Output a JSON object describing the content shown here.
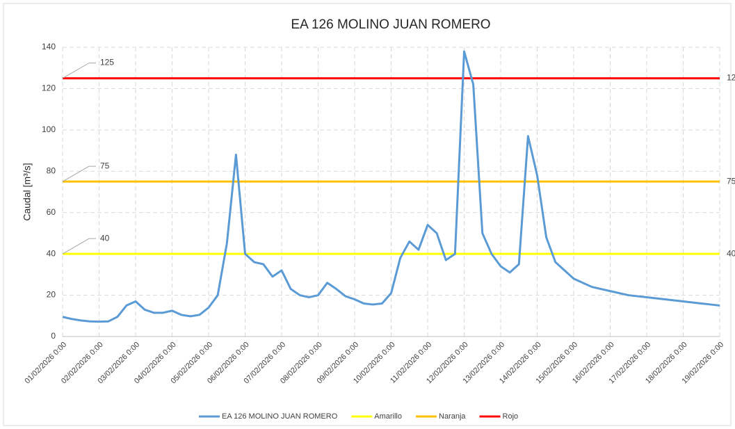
{
  "chart_data": {
    "type": "line",
    "title": "EA 126 MOLINO JUAN ROMERO",
    "y_label": "Caudal [m³/s]",
    "xlim": [
      "01/02/2026 0:00",
      "19/02/2026 0:00"
    ],
    "xticks": [
      "01/02/2026 0:00",
      "02/02/2026 0:00",
      "03/02/2026 0:00",
      "04/02/2026 0:00",
      "05/02/2026 0:00",
      "06/02/2026 0:00",
      "07/02/2026 0:00",
      "08/02/2026 0:00",
      "09/02/2026 0:00",
      "10/02/2026 0:00",
      "11/02/2026 0:00",
      "12/02/2026 0:00",
      "13/02/2026 0:00",
      "14/02/2026 0:00",
      "15/02/2026 0:00",
      "16/02/2026 0:00",
      "17/02/2026 0:00",
      "18/02/2026 0:00",
      "19/02/2026 0:00"
    ],
    "ylim": [
      0,
      140
    ],
    "yticks": [
      0,
      20,
      40,
      60,
      80,
      100,
      120,
      140
    ],
    "grid": true,
    "x": [
      "01/02/2026 0:00",
      "01/02/2026 6:00",
      "01/02/2026 12:00",
      "01/02/2026 18:00",
      "02/02/2026 0:00",
      "02/02/2026 6:00",
      "02/02/2026 12:00",
      "02/02/2026 18:00",
      "03/02/2026 0:00",
      "03/02/2026 6:00",
      "03/02/2026 12:00",
      "03/02/2026 18:00",
      "04/02/2026 0:00",
      "04/02/2026 6:00",
      "04/02/2026 12:00",
      "04/02/2026 18:00",
      "05/02/2026 0:00",
      "05/02/2026 6:00",
      "05/02/2026 12:00",
      "05/02/2026 18:00",
      "06/02/2026 0:00",
      "06/02/2026 6:00",
      "06/02/2026 12:00",
      "06/02/2026 18:00",
      "07/02/2026 0:00",
      "07/02/2026 6:00",
      "07/02/2026 12:00",
      "07/02/2026 18:00",
      "08/02/2026 0:00",
      "08/02/2026 6:00",
      "08/02/2026 12:00",
      "08/02/2026 18:00",
      "09/02/2026 0:00",
      "09/02/2026 6:00",
      "09/02/2026 12:00",
      "09/02/2026 18:00",
      "10/02/2026 0:00",
      "10/02/2026 6:00",
      "10/02/2026 12:00",
      "10/02/2026 18:00",
      "11/02/2026 0:00",
      "11/02/2026 6:00",
      "11/02/2026 12:00",
      "11/02/2026 18:00",
      "12/02/2026 0:00",
      "12/02/2026 6:00",
      "12/02/2026 12:00",
      "12/02/2026 18:00",
      "13/02/2026 0:00",
      "13/02/2026 6:00",
      "13/02/2026 12:00",
      "13/02/2026 18:00",
      "14/02/2026 0:00",
      "14/02/2026 6:00",
      "14/02/2026 12:00",
      "14/02/2026 18:00",
      "15/02/2026 0:00",
      "15/02/2026 6:00",
      "15/02/2026 12:00",
      "15/02/2026 18:00",
      "16/02/2026 0:00",
      "16/02/2026 6:00",
      "16/02/2026 12:00",
      "16/02/2026 18:00",
      "17/02/2026 0:00",
      "17/02/2026 6:00",
      "17/02/2026 12:00",
      "17/02/2026 18:00",
      "18/02/2026 0:00",
      "18/02/2026 6:00",
      "18/02/2026 12:00",
      "18/02/2026 18:00",
      "19/02/2026 0:00"
    ],
    "series": [
      {
        "name": "EA 126 MOLINO JUAN ROMERO",
        "color": "#5b9bd5",
        "values": [
          9.5,
          8.5,
          7.8,
          7.3,
          7.2,
          7.3,
          9.5,
          15,
          17,
          13,
          11.5,
          11.5,
          12.5,
          10.5,
          9.8,
          10.5,
          14,
          20,
          45,
          88,
          40,
          36,
          35,
          29,
          32,
          23,
          20,
          19,
          20,
          26,
          23,
          19.5,
          18,
          16,
          15.5,
          16,
          21,
          38,
          46,
          42,
          54,
          50,
          37,
          40,
          138,
          122,
          50,
          40,
          34,
          31,
          35,
          97,
          78,
          48,
          36,
          32,
          28,
          26,
          24,
          23,
          22,
          21,
          20,
          19.5,
          19,
          18.5,
          18,
          17.5,
          17,
          16.5,
          16,
          15.5,
          15
        ]
      }
    ],
    "thresholds": [
      {
        "name": "Amarillo",
        "color": "#ffff00",
        "value": 40
      },
      {
        "name": "Naranja",
        "color": "#ffc000",
        "value": 75
      },
      {
        "name": "Rojo",
        "color": "#ff0000",
        "value": 125
      }
    ]
  }
}
